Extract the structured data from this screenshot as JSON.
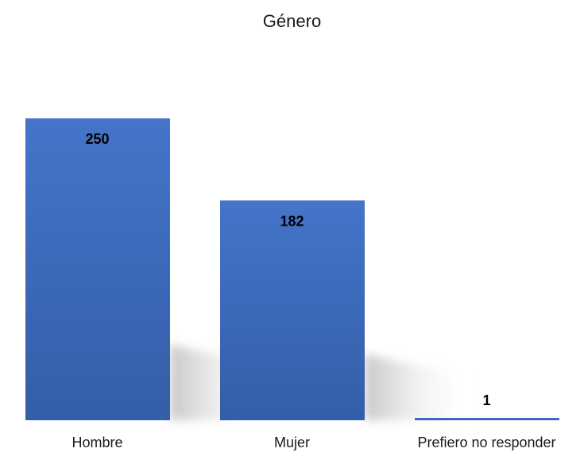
{
  "chart_data": {
    "type": "bar",
    "title": "Género",
    "categories": [
      "Hombre",
      "Mujer",
      "Prefiero no responder"
    ],
    "values": [
      250,
      182,
      1
    ],
    "data_labels": [
      "250",
      "182",
      "1"
    ],
    "xlabel": "",
    "ylabel": "",
    "ylim": [
      0,
      250
    ],
    "grid": false,
    "legend": "none",
    "colors": {
      "bar_top": "#4574c9",
      "bar_bottom": "#335ea8",
      "shadow": "#cfcfcf"
    }
  }
}
